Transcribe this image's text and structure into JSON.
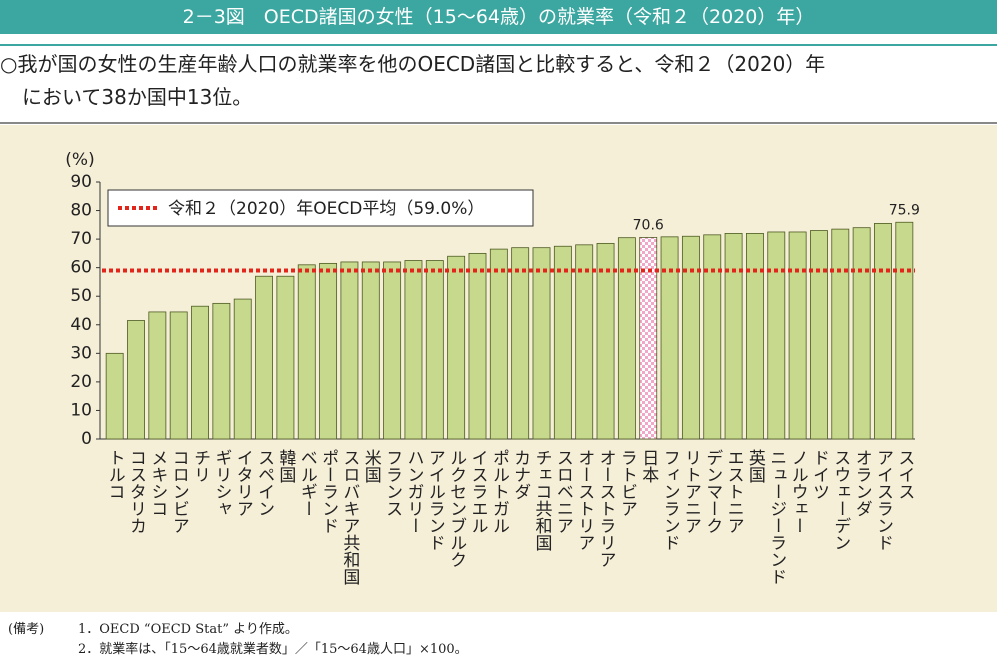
{
  "header": {
    "title": "2－3図　OECD諸国の女性（15～64歳）の就業率（令和２（2020）年）"
  },
  "summary": [
    "○我が国の女性の生産年齢人口の就業率を他のOECD諸国と比較すると、令和２（2020）年",
    "において38か国中13位。"
  ],
  "chart_data": {
    "type": "bar",
    "y_label": "(%)",
    "categories": [
      "トルコ",
      "コスタリカ",
      "メキシコ",
      "コロンビア",
      "チリ",
      "ギリシャ",
      "イタリア",
      "スペイン",
      "韓国",
      "ベルギー",
      "ポーランド",
      "スロバキア共和国",
      "米国",
      "フランス",
      "ハンガリー",
      "アイルランド",
      "ルクセンブルク",
      "イスラエル",
      "ポルトガル",
      "カナダ",
      "チェコ共和国",
      "スロベニア",
      "オーストリア",
      "オーストラリア",
      "ラトビア",
      "日本",
      "フィンランド",
      "リトアニア",
      "デンマーク",
      "エストニア",
      "英国",
      "ニュージーランド",
      "ノルウェー",
      "ドイツ",
      "スウェーデン",
      "オランダ",
      "アイスランド",
      "スイス"
    ],
    "values": [
      30,
      41.5,
      44.5,
      44.5,
      46.5,
      47.5,
      49,
      57,
      57,
      61,
      61.5,
      62,
      62,
      62,
      62.5,
      62.5,
      64,
      65,
      66.5,
      67,
      67,
      67.5,
      68,
      68.5,
      70.5,
      70.6,
      70.8,
      71,
      71.5,
      72,
      72,
      72.5,
      72.5,
      73,
      73.5,
      74,
      75.5,
      75.9
    ],
    "value_labels": [
      null,
      null,
      null,
      null,
      null,
      null,
      null,
      null,
      null,
      null,
      null,
      null,
      null,
      null,
      null,
      null,
      null,
      null,
      null,
      null,
      null,
      null,
      null,
      null,
      null,
      "70.6",
      null,
      null,
      null,
      null,
      null,
      null,
      null,
      null,
      null,
      null,
      null,
      "75.9"
    ],
    "color": "#c6d98c",
    "highlight_category": "日本",
    "highlight_color": "#f2a6c8",
    "reference_line": {
      "value": 59.0,
      "label": "令和２（2020）年OECD平均（59.0%）",
      "color": "#e3241b"
    },
    "ylim": [
      0,
      90
    ],
    "yticks": [
      0,
      10,
      20,
      30,
      40,
      50,
      60,
      70,
      80,
      90
    ],
    "grid": false
  },
  "notes": {
    "label": "(備考)",
    "items": [
      "1．OECD “OECD Stat” より作成。",
      "2．就業率は、「15～64歳就業者数」／「15～64歳人口」×100。"
    ]
  }
}
